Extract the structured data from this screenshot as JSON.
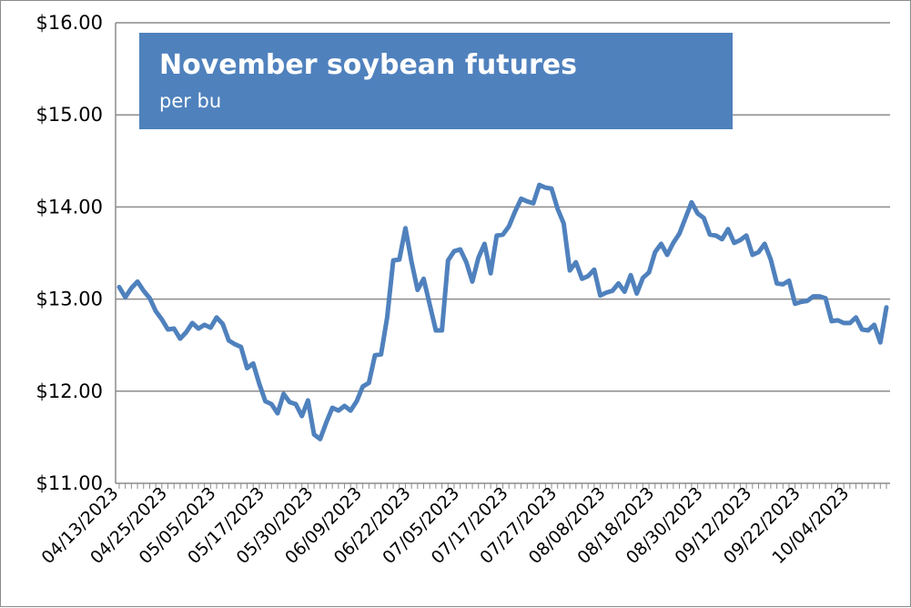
{
  "chart_data": {
    "type": "line",
    "title": "November soybean futures",
    "subtitle": "per bu",
    "xlabel": "",
    "ylabel": "",
    "ylim": [
      11,
      16
    ],
    "y_ticks": [
      "$11.00",
      "$12.00",
      "$13.00",
      "$14.00",
      "$15.00",
      "$16.00"
    ],
    "x_tick_labels": [
      "04/13/2023",
      "04/25/2023",
      "05/05/2023",
      "05/17/2023",
      "05/30/2023",
      "06/09/2023",
      "06/22/2023",
      "07/05/2023",
      "07/17/2023",
      "07/27/2023",
      "08/08/2023",
      "08/18/2023",
      "08/30/2023",
      "09/12/2023",
      "09/22/2023",
      "10/04/2023"
    ],
    "grid": "horizontal",
    "line_color": "#4f81bd",
    "title_box_color": "#4f81bd",
    "series": [
      {
        "values": [
          13.13,
          13.02,
          13.12,
          13.19,
          13.09,
          13.01,
          12.87,
          12.78,
          12.67,
          12.68,
          12.57,
          12.64,
          12.74,
          12.68,
          12.72,
          12.69,
          12.8,
          12.73,
          12.55,
          12.51,
          12.48,
          12.25,
          12.3,
          12.08,
          11.89,
          11.86,
          11.76,
          11.97,
          11.88,
          11.86,
          11.73,
          11.9,
          11.53,
          11.48,
          11.66,
          11.82,
          11.79,
          11.84,
          11.79,
          11.89,
          12.05,
          12.09,
          12.39,
          12.4,
          12.8,
          13.42,
          13.43,
          13.77,
          13.41,
          13.1,
          13.22,
          12.94,
          12.66,
          12.66,
          13.42,
          13.52,
          13.54,
          13.4,
          13.19,
          13.45,
          13.6,
          13.28,
          13.69,
          13.7,
          13.79,
          13.95,
          14.09,
          14.06,
          14.04,
          14.24,
          14.21,
          14.2,
          13.98,
          13.82,
          13.31,
          13.4,
          13.22,
          13.25,
          13.32,
          13.04,
          13.07,
          13.09,
          13.17,
          13.08,
          13.26,
          13.06,
          13.23,
          13.29,
          13.51,
          13.6,
          13.48,
          13.61,
          13.71,
          13.88,
          14.05,
          13.93,
          13.88,
          13.7,
          13.69,
          13.65,
          13.76,
          13.61,
          13.64,
          13.69,
          13.48,
          13.51,
          13.6,
          13.43,
          13.17,
          13.16,
          13.2,
          12.95,
          12.97,
          12.98,
          13.03,
          13.03,
          13.01,
          12.76,
          12.77,
          12.74,
          12.74,
          12.8,
          12.67,
          12.66,
          12.72,
          12.53,
          12.91
        ]
      }
    ]
  }
}
